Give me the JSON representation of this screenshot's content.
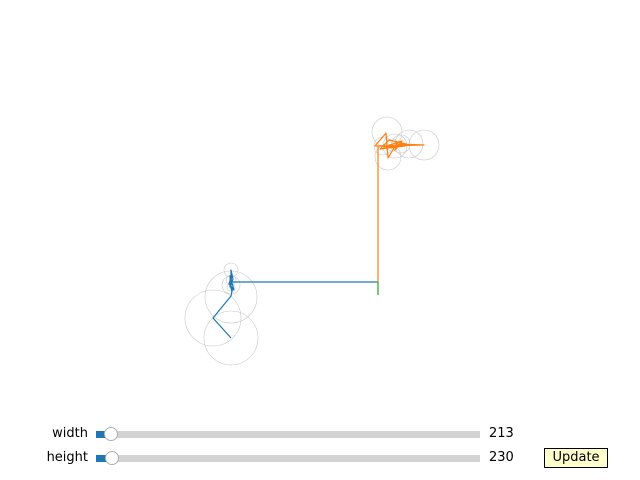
{
  "sliders": [
    {
      "id": "width",
      "label": "width",
      "value": 213,
      "value_text": "213",
      "min": 0,
      "max": 10000
    },
    {
      "id": "height",
      "label": "height",
      "value": 230,
      "value_text": "230",
      "min": 0,
      "max": 10000
    }
  ],
  "update_button": {
    "label": "Update"
  },
  "colors": {
    "series1": "#1f77b4",
    "series2": "#ff7f0e",
    "series3": "#2ca02c",
    "circles": "#c8c8c8",
    "slider_fill": "#1f77b4",
    "slider_track": "#d3d3d3",
    "button_bg": "#ffffcc"
  },
  "plot": {
    "axes_visible": false,
    "paths": [
      {
        "name": "blue-path",
        "color": "#1f77b4",
        "x": [
          378,
          231,
          231,
          233,
          230,
          232,
          229,
          234,
          230,
          231,
          232,
          230,
          233,
          231,
          213,
          231
        ],
        "y": [
          -282,
          -282,
          -270,
          -279,
          -287,
          -275,
          -284,
          -290,
          -276,
          -288,
          -292,
          -279,
          -286,
          -296,
          -318,
          -338
        ]
      },
      {
        "name": "orange-path",
        "color": "#ff7f0e",
        "x": [
          378,
          378,
          375,
          386,
          388,
          397,
          395,
          402,
          384,
          410,
          389,
          380,
          405,
          376,
          424,
          396
        ],
        "y": [
          -282,
          -146,
          -146,
          -133,
          -158,
          -143,
          -150,
          -141,
          -147,
          -145,
          -140,
          -149,
          -146,
          -146,
          -145,
          -144
        ]
      },
      {
        "name": "green-path",
        "color": "#2ca02c",
        "x": [
          378,
          378
        ],
        "y": [
          -282,
          -295
        ]
      }
    ],
    "circles": [
      {
        "x": 231,
        "y": -270,
        "r": 7
      },
      {
        "x": 231,
        "y": -280,
        "r": 5
      },
      {
        "x": 231,
        "y": -287,
        "r": 4
      },
      {
        "x": 231,
        "y": -285,
        "r": 9
      },
      {
        "x": 231,
        "y": -297,
        "r": 26
      },
      {
        "x": 213,
        "y": -318,
        "r": 28
      },
      {
        "x": 231,
        "y": -338,
        "r": 27
      },
      {
        "x": 387,
        "y": -132,
        "r": 15
      },
      {
        "x": 383,
        "y": -146,
        "r": 9
      },
      {
        "x": 388,
        "y": -157,
        "r": 13
      },
      {
        "x": 395,
        "y": -146,
        "r": 12
      },
      {
        "x": 401,
        "y": -144,
        "r": 9
      },
      {
        "x": 409,
        "y": -144,
        "r": 14
      },
      {
        "x": 424,
        "y": -145,
        "r": 15
      },
      {
        "x": 392,
        "y": -145,
        "r": 6
      }
    ]
  }
}
